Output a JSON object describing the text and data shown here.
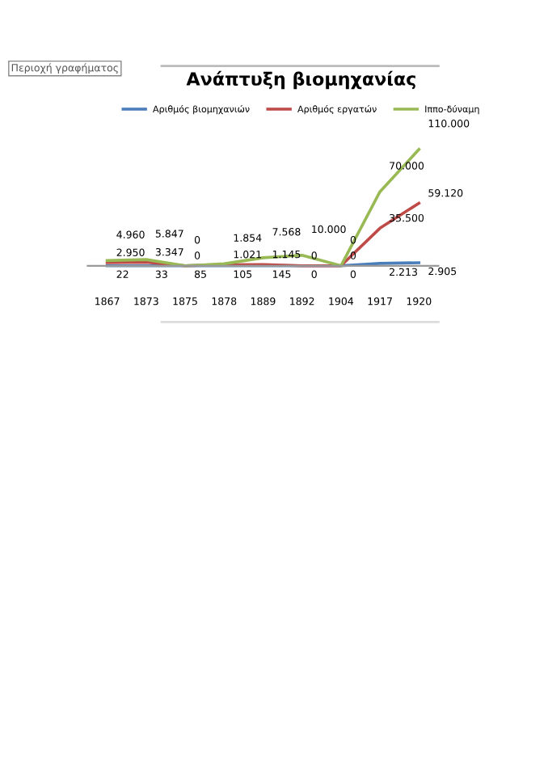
{
  "chart_data": {
    "type": "line",
    "title": "Ανάπτυξη βιομηχανίας",
    "annotations": [
      "Περιοχή γραφήματος"
    ],
    "categories": [
      "1867",
      "1873",
      "1875",
      "1878",
      "1889",
      "1892",
      "1904",
      "1917",
      "1920"
    ],
    "series": [
      {
        "name": "Αριθμός βιομηχανιών",
        "color": "#4a7ebb",
        "values": [
          22,
          33,
          85,
          105,
          145,
          0,
          0,
          2213,
          2905
        ],
        "value_labels": [
          "22",
          "33",
          "85",
          "105",
          "145",
          "0",
          "0",
          "2.213",
          "2.905"
        ]
      },
      {
        "name": "Αριθμός εργατών",
        "color": "#be4b48",
        "values": [
          2950,
          3347,
          0,
          1021,
          1145,
          0,
          0,
          35500,
          59120
        ],
        "value_labels": [
          "2.950",
          "3.347",
          "0",
          "1.021",
          "1.145",
          "0",
          "0",
          "35.500",
          "59.120"
        ]
      },
      {
        "name": "Ιππο-δύναμη",
        "color": "#98b954",
        "values": [
          4960,
          5847,
          0,
          1854,
          7568,
          10000,
          0,
          70000,
          110000
        ],
        "value_labels": [
          "4.960",
          "5.847",
          "0",
          "1.854",
          "7.568",
          "10.000",
          "0",
          "70.000",
          "110.000"
        ]
      }
    ],
    "legend": "top",
    "grid": false,
    "marker": "none",
    "line_style": "solid"
  }
}
